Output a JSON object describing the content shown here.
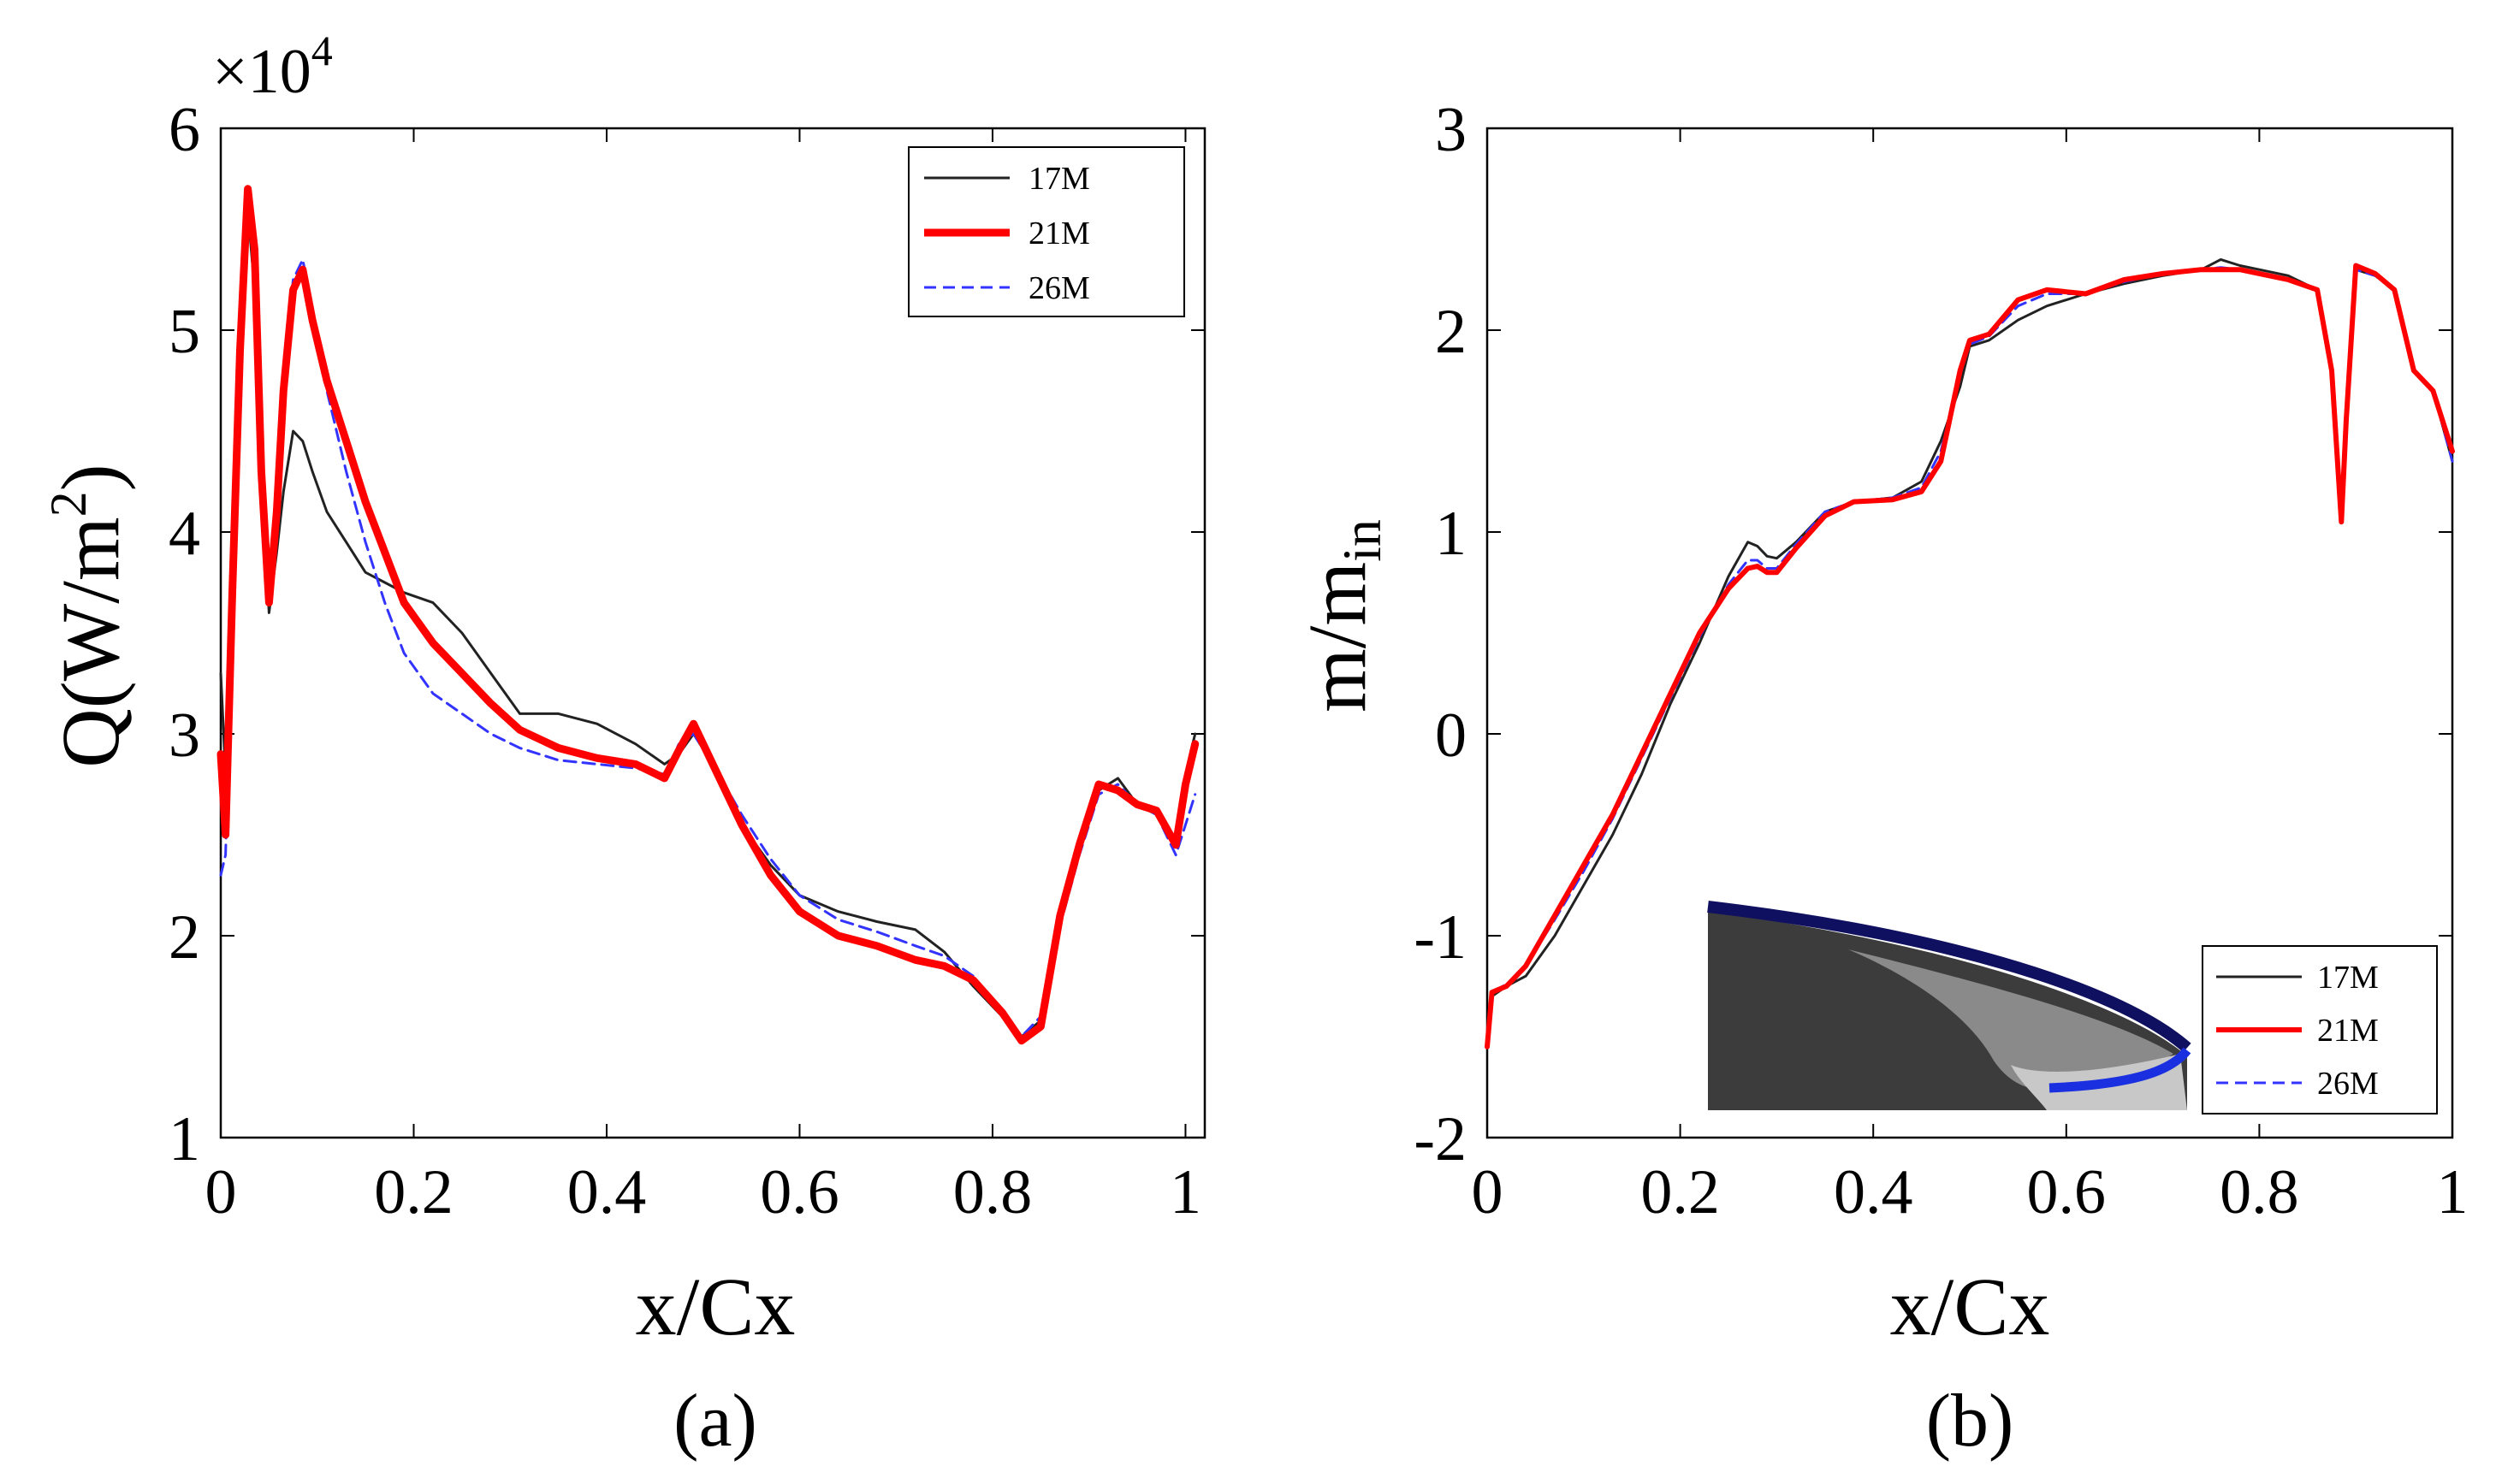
{
  "chart_data": [
    {
      "type": "line",
      "panel_caption": "(a)",
      "xlabel": "x/Cx",
      "ylabel_main": "Q(W/m",
      "ylabel_sup": "2",
      "ylabel_end": ")",
      "y_multiplier_base": "×10",
      "y_multiplier_exp": "4",
      "xlim": [
        0,
        1.02
      ],
      "ylim": [
        1,
        6
      ],
      "xticks": [
        0,
        0.2,
        0.4,
        0.6,
        0.8,
        1
      ],
      "xtick_labels": [
        "0",
        "0.2",
        "0.4",
        "0.6",
        "0.8",
        "1"
      ],
      "yticks": [
        1,
        2,
        3,
        4,
        5,
        6
      ],
      "ytick_labels": [
        "1",
        "2",
        "3",
        "4",
        "5",
        "6"
      ],
      "legend_position": "top-right",
      "series": [
        {
          "name": "17M",
          "color": "#222222",
          "style": "solid",
          "x": [
            0,
            0.005,
            0.012,
            0.02,
            0.028,
            0.035,
            0.042,
            0.05,
            0.058,
            0.065,
            0.075,
            0.085,
            0.095,
            0.11,
            0.13,
            0.15,
            0.17,
            0.19,
            0.22,
            0.25,
            0.28,
            0.31,
            0.35,
            0.39,
            0.43,
            0.46,
            0.475,
            0.49,
            0.51,
            0.54,
            0.57,
            0.6,
            0.64,
            0.68,
            0.72,
            0.75,
            0.78,
            0.81,
            0.83,
            0.85,
            0.87,
            0.89,
            0.91,
            0.93,
            0.95,
            0.97,
            0.99,
            1.0,
            1.01
          ],
          "values": [
            3.3,
            2.8,
            3.9,
            5.0,
            5.6,
            5.2,
            4.3,
            3.6,
            3.9,
            4.2,
            4.5,
            4.45,
            4.3,
            4.1,
            3.95,
            3.8,
            3.75,
            3.7,
            3.65,
            3.5,
            3.3,
            3.1,
            3.1,
            3.05,
            2.95,
            2.85,
            2.9,
            3.0,
            2.85,
            2.55,
            2.35,
            2.2,
            2.12,
            2.07,
            2.03,
            1.92,
            1.75,
            1.6,
            1.5,
            1.58,
            2.1,
            2.45,
            2.72,
            2.78,
            2.65,
            2.6,
            2.45,
            2.8,
            3.0
          ]
        },
        {
          "name": "21M",
          "color": "#ff0000",
          "style": "thick",
          "x": [
            0,
            0.005,
            0.012,
            0.02,
            0.028,
            0.035,
            0.042,
            0.05,
            0.058,
            0.065,
            0.075,
            0.085,
            0.095,
            0.11,
            0.13,
            0.15,
            0.17,
            0.19,
            0.22,
            0.25,
            0.28,
            0.31,
            0.35,
            0.39,
            0.43,
            0.46,
            0.475,
            0.49,
            0.51,
            0.54,
            0.57,
            0.6,
            0.64,
            0.68,
            0.72,
            0.75,
            0.78,
            0.81,
            0.83,
            0.85,
            0.87,
            0.89,
            0.91,
            0.93,
            0.95,
            0.97,
            0.99,
            1.0,
            1.01
          ],
          "values": [
            2.9,
            2.5,
            3.7,
            4.9,
            5.7,
            5.4,
            4.3,
            3.65,
            4.1,
            4.7,
            5.2,
            5.3,
            5.05,
            4.75,
            4.45,
            4.15,
            3.9,
            3.65,
            3.45,
            3.3,
            3.15,
            3.02,
            2.93,
            2.88,
            2.85,
            2.78,
            2.92,
            3.05,
            2.85,
            2.55,
            2.3,
            2.12,
            2.0,
            1.95,
            1.88,
            1.85,
            1.78,
            1.62,
            1.48,
            1.55,
            2.1,
            2.45,
            2.75,
            2.72,
            2.65,
            2.62,
            2.45,
            2.75,
            2.95
          ]
        },
        {
          "name": "26M",
          "color": "#3333ff",
          "style": "dashed",
          "x": [
            0,
            0.005,
            0.012,
            0.02,
            0.028,
            0.035,
            0.042,
            0.05,
            0.058,
            0.065,
            0.075,
            0.085,
            0.095,
            0.11,
            0.13,
            0.15,
            0.17,
            0.19,
            0.22,
            0.25,
            0.28,
            0.31,
            0.35,
            0.39,
            0.43,
            0.46,
            0.475,
            0.49,
            0.51,
            0.54,
            0.57,
            0.6,
            0.64,
            0.68,
            0.72,
            0.75,
            0.78,
            0.81,
            0.83,
            0.85,
            0.87,
            0.89,
            0.91,
            0.93,
            0.95,
            0.97,
            0.99,
            1.0,
            1.01
          ],
          "values": [
            2.3,
            2.4,
            3.6,
            4.8,
            5.65,
            5.35,
            4.3,
            3.7,
            4.2,
            4.8,
            5.25,
            5.35,
            5.1,
            4.7,
            4.3,
            3.95,
            3.65,
            3.4,
            3.2,
            3.1,
            3.0,
            2.93,
            2.87,
            2.85,
            2.83,
            2.8,
            2.95,
            3.0,
            2.85,
            2.6,
            2.38,
            2.2,
            2.08,
            2.02,
            1.95,
            1.9,
            1.8,
            1.62,
            1.5,
            1.6,
            2.05,
            2.4,
            2.7,
            2.75,
            2.65,
            2.6,
            2.4,
            2.55,
            2.7
          ]
        }
      ]
    },
    {
      "type": "line",
      "panel_caption": "(b)",
      "xlabel": "x/Cx",
      "ylabel_main": "m/m",
      "ylabel_sub": "in",
      "xlim": [
        0,
        1
      ],
      "ylim": [
        -2,
        3
      ],
      "xticks": [
        0,
        0.2,
        0.4,
        0.6,
        0.8,
        1
      ],
      "xtick_labels": [
        "0",
        "0.2",
        "0.4",
        "0.6",
        "0.8",
        "1"
      ],
      "yticks": [
        -2,
        -1,
        0,
        1,
        2,
        3
      ],
      "ytick_labels": [
        "-2",
        "-1",
        "0",
        "1",
        "2",
        "3"
      ],
      "legend_position": "bottom-right",
      "inset": "blade-tip-geometry",
      "series": [
        {
          "name": "17M",
          "color": "#222222",
          "style": "solid",
          "x": [
            0,
            0.005,
            0.02,
            0.04,
            0.07,
            0.1,
            0.13,
            0.16,
            0.19,
            0.22,
            0.25,
            0.27,
            0.28,
            0.29,
            0.3,
            0.32,
            0.35,
            0.38,
            0.42,
            0.45,
            0.47,
            0.49,
            0.5,
            0.52,
            0.55,
            0.58,
            0.62,
            0.66,
            0.7,
            0.74,
            0.76,
            0.78,
            0.8,
            0.83,
            0.86,
            0.875,
            0.885,
            0.89,
            0.9,
            0.92,
            0.94,
            0.96,
            0.98,
            1.0
          ],
          "values": [
            -1.55,
            -1.3,
            -1.25,
            -1.2,
            -1.0,
            -0.75,
            -0.5,
            -0.2,
            0.15,
            0.45,
            0.78,
            0.95,
            0.93,
            0.88,
            0.87,
            0.95,
            1.1,
            1.15,
            1.17,
            1.25,
            1.45,
            1.72,
            1.92,
            1.95,
            2.05,
            2.12,
            2.18,
            2.23,
            2.27,
            2.3,
            2.35,
            2.32,
            2.3,
            2.27,
            2.2,
            1.8,
            1.05,
            1.5,
            2.3,
            2.27,
            2.2,
            1.8,
            1.7,
            1.35
          ]
        },
        {
          "name": "21M",
          "color": "#ff0000",
          "style": "thick",
          "x": [
            0,
            0.005,
            0.02,
            0.04,
            0.07,
            0.1,
            0.13,
            0.16,
            0.19,
            0.22,
            0.25,
            0.27,
            0.28,
            0.29,
            0.3,
            0.32,
            0.35,
            0.38,
            0.42,
            0.45,
            0.47,
            0.49,
            0.5,
            0.52,
            0.55,
            0.58,
            0.62,
            0.66,
            0.7,
            0.74,
            0.76,
            0.78,
            0.8,
            0.83,
            0.86,
            0.875,
            0.885,
            0.89,
            0.9,
            0.92,
            0.94,
            0.96,
            0.98,
            1.0
          ],
          "values": [
            -1.55,
            -1.28,
            -1.25,
            -1.15,
            -0.9,
            -0.65,
            -0.4,
            -0.1,
            0.2,
            0.5,
            0.72,
            0.82,
            0.83,
            0.8,
            0.8,
            0.92,
            1.08,
            1.15,
            1.16,
            1.2,
            1.35,
            1.8,
            1.95,
            1.98,
            2.15,
            2.2,
            2.18,
            2.25,
            2.28,
            2.3,
            2.3,
            2.3,
            2.28,
            2.25,
            2.2,
            1.8,
            1.05,
            1.55,
            2.32,
            2.28,
            2.2,
            1.8,
            1.7,
            1.4
          ]
        },
        {
          "name": "26M",
          "color": "#3333ff",
          "style": "dashed",
          "x": [
            0,
            0.005,
            0.02,
            0.04,
            0.07,
            0.1,
            0.13,
            0.16,
            0.19,
            0.22,
            0.25,
            0.27,
            0.28,
            0.29,
            0.3,
            0.32,
            0.35,
            0.38,
            0.42,
            0.45,
            0.47,
            0.49,
            0.5,
            0.52,
            0.55,
            0.58,
            0.62,
            0.66,
            0.7,
            0.74,
            0.76,
            0.78,
            0.8,
            0.83,
            0.86,
            0.875,
            0.885,
            0.89,
            0.9,
            0.92,
            0.94,
            0.96,
            0.98,
            1.0
          ],
          "values": [
            -1.55,
            -1.28,
            -1.24,
            -1.15,
            -0.92,
            -0.68,
            -0.42,
            -0.12,
            0.18,
            0.48,
            0.74,
            0.86,
            0.86,
            0.82,
            0.82,
            0.94,
            1.1,
            1.15,
            1.17,
            1.22,
            1.4,
            1.78,
            1.93,
            1.97,
            2.12,
            2.18,
            2.18,
            2.24,
            2.28,
            2.3,
            2.31,
            2.3,
            2.28,
            2.25,
            2.2,
            1.8,
            1.05,
            1.52,
            2.3,
            2.27,
            2.2,
            1.8,
            1.7,
            1.35
          ]
        }
      ]
    }
  ]
}
